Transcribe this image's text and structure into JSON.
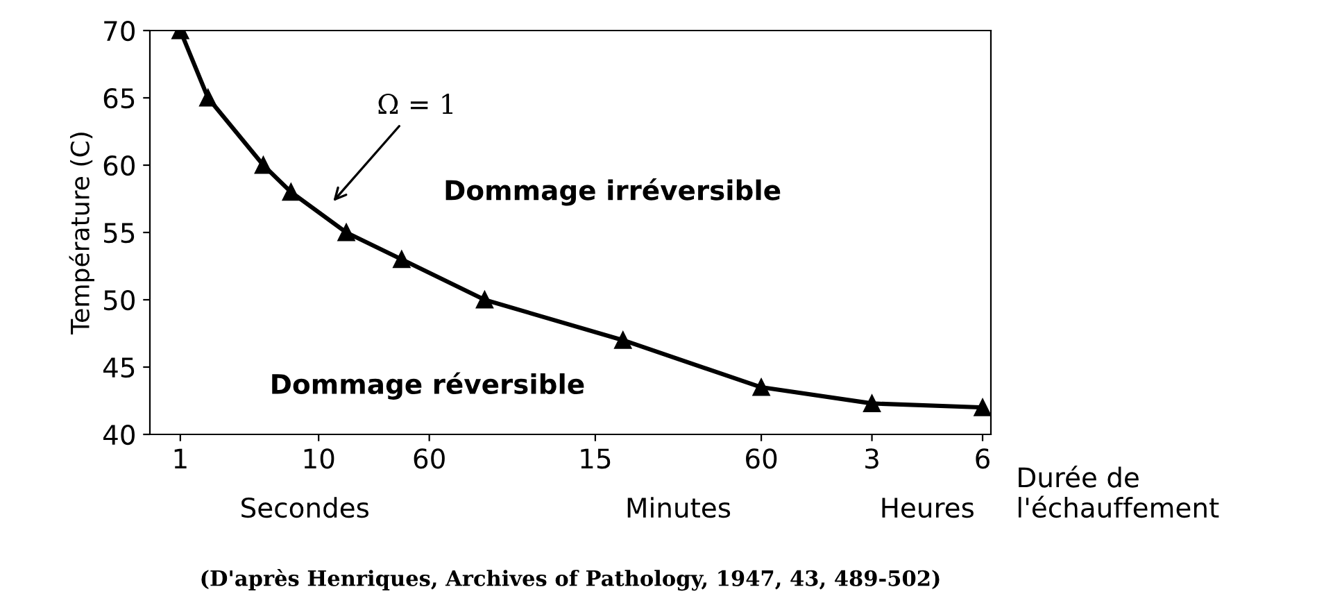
{
  "chart_data": {
    "type": "line",
    "ylabel": "Température (C)",
    "xlabel": "Durée de\nl'échauffement",
    "categories": [
      "1",
      null,
      null,
      null,
      null,
      "10",
      null,
      null,
      null,
      "60",
      null,
      null,
      null,
      null,
      null,
      "15",
      null,
      null,
      null,
      null,
      null,
      "60",
      null,
      null,
      null,
      "3",
      null,
      null,
      null,
      "6"
    ],
    "series": [
      {
        "color": "#000000",
        "values": [
          70,
          65,
          null,
          60,
          58,
          null,
          55,
          null,
          53,
          null,
          null,
          50,
          null,
          null,
          null,
          null,
          47,
          null,
          null,
          null,
          null,
          43.5,
          null,
          null,
          null,
          42.3,
          null,
          null,
          null,
          42
        ]
      }
    ],
    "marker": "triangle",
    "line_style": "solid",
    "grid": false,
    "ylim": [
      40,
      70
    ],
    "yticks": [
      40,
      45,
      50,
      55,
      60,
      65,
      70
    ],
    "annotations": [
      "Ω = 1",
      "Dommage irréversible",
      "Dommage réversible",
      "Secondes",
      "Minutes",
      "Heures",
      "(D'après Henriques, Archives of Pathology, 1947, 43, 489-502)"
    ]
  }
}
